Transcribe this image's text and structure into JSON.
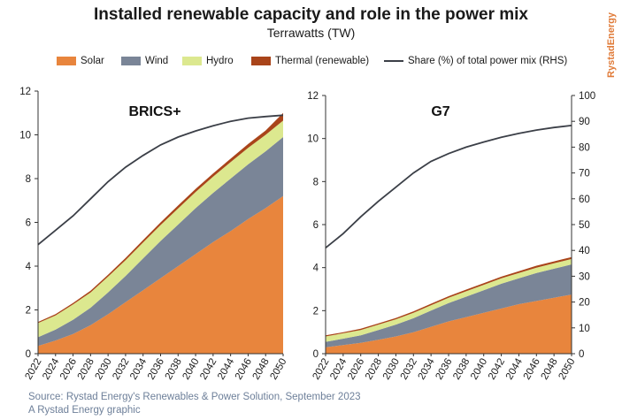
{
  "header": {
    "title": "Installed renewable capacity and role in the power mix",
    "subtitle": "Terrawatts (TW)",
    "brand": "RystadEnergy"
  },
  "legend": [
    {
      "label": "Solar",
      "color": "#e8853d",
      "kind": "area"
    },
    {
      "label": "Wind",
      "color": "#7a8597",
      "kind": "area"
    },
    {
      "label": "Hydro",
      "color": "#dce88f",
      "kind": "area"
    },
    {
      "label": "Thermal (renewable)",
      "color": "#a9441a",
      "kind": "area"
    },
    {
      "label": "Share (%) of total power mix (RHS)",
      "color": "#3b3f47",
      "kind": "line"
    }
  ],
  "footer": {
    "source": "Source: Rystad Energy's Renewables & Power Solution, September 2023",
    "credit": "A Rystad Energy graphic"
  },
  "chart_data": [
    {
      "type": "area",
      "title": "BRICS+",
      "x": [
        2022,
        2024,
        2026,
        2028,
        2030,
        2032,
        2034,
        2036,
        2038,
        2040,
        2042,
        2044,
        2046,
        2048,
        2050
      ],
      "xticks": [
        "2022",
        "2024",
        "2026",
        "2028",
        "2030",
        "2032",
        "2034",
        "2036",
        "2038",
        "2040",
        "2042",
        "2044",
        "2046",
        "2048",
        "2050"
      ],
      "ylim": [
        0,
        12
      ],
      "yticks": [
        0,
        2,
        4,
        6,
        8,
        10,
        12
      ],
      "stacked": true,
      "series": [
        {
          "name": "Solar",
          "values": [
            0.35,
            0.6,
            0.9,
            1.3,
            1.8,
            2.35,
            2.9,
            3.45,
            4.0,
            4.55,
            5.1,
            5.6,
            6.15,
            6.65,
            7.2
          ]
        },
        {
          "name": "Wind",
          "values": [
            0.4,
            0.5,
            0.65,
            0.8,
            1.0,
            1.2,
            1.45,
            1.7,
            1.9,
            2.1,
            2.25,
            2.4,
            2.5,
            2.6,
            2.7
          ]
        },
        {
          "name": "Hydro",
          "values": [
            0.65,
            0.65,
            0.7,
            0.7,
            0.72,
            0.72,
            0.73,
            0.73,
            0.74,
            0.74,
            0.74,
            0.75,
            0.75,
            0.75,
            0.75
          ]
        },
        {
          "name": "Thermal (renewable)",
          "values": [
            0.05,
            0.06,
            0.07,
            0.08,
            0.09,
            0.1,
            0.11,
            0.12,
            0.13,
            0.14,
            0.15,
            0.16,
            0.18,
            0.2,
            0.35
          ]
        }
      ],
      "share_line": {
        "name": "Share (%) of total power mix (RHS)",
        "values": [
          41.5,
          47,
          52.5,
          59,
          65.5,
          71,
          75.5,
          79.5,
          82.5,
          84.8,
          86.8,
          88.5,
          89.7,
          90.3,
          90.8
        ],
        "ylim": [
          0,
          100
        ]
      }
    },
    {
      "type": "area",
      "title": "G7",
      "x": [
        2022,
        2024,
        2026,
        2028,
        2030,
        2032,
        2034,
        2036,
        2038,
        2040,
        2042,
        2044,
        2046,
        2048,
        2050
      ],
      "xticks": [
        "2022",
        "2024",
        "2026",
        "2028",
        "2030",
        "2032",
        "2034",
        "2036",
        "2038",
        "2040",
        "2042",
        "2044",
        "2046",
        "2048",
        "2050"
      ],
      "ylim": [
        0,
        12
      ],
      "yticks": [
        0,
        2,
        4,
        6,
        8,
        10,
        12
      ],
      "y2lim": [
        0,
        100
      ],
      "y2ticks": [
        0,
        10,
        20,
        30,
        40,
        50,
        60,
        70,
        80,
        90,
        100
      ],
      "stacked": true,
      "series": [
        {
          "name": "Solar",
          "values": [
            0.3,
            0.4,
            0.5,
            0.65,
            0.8,
            1.0,
            1.25,
            1.5,
            1.7,
            1.9,
            2.1,
            2.3,
            2.45,
            2.6,
            2.75
          ]
        },
        {
          "name": "Wind",
          "values": [
            0.25,
            0.3,
            0.35,
            0.45,
            0.55,
            0.65,
            0.75,
            0.85,
            0.95,
            1.05,
            1.15,
            1.2,
            1.3,
            1.35,
            1.4
          ]
        },
        {
          "name": "Hydro",
          "values": [
            0.25,
            0.25,
            0.25,
            0.25,
            0.25,
            0.25,
            0.25,
            0.25,
            0.25,
            0.25,
            0.25,
            0.25,
            0.25,
            0.25,
            0.25
          ]
        },
        {
          "name": "Thermal (renewable)",
          "values": [
            0.05,
            0.05,
            0.06,
            0.06,
            0.06,
            0.07,
            0.07,
            0.07,
            0.08,
            0.08,
            0.08,
            0.08,
            0.09,
            0.09,
            0.09
          ]
        }
      ],
      "share_line": {
        "name": "Share (%) of total power mix (RHS)",
        "values": [
          41,
          46.5,
          53,
          59,
          64.5,
          70,
          74.5,
          77.5,
          80,
          82,
          83.8,
          85.3,
          86.6,
          87.6,
          88.4
        ],
        "ylim": [
          0,
          100
        ]
      }
    }
  ]
}
